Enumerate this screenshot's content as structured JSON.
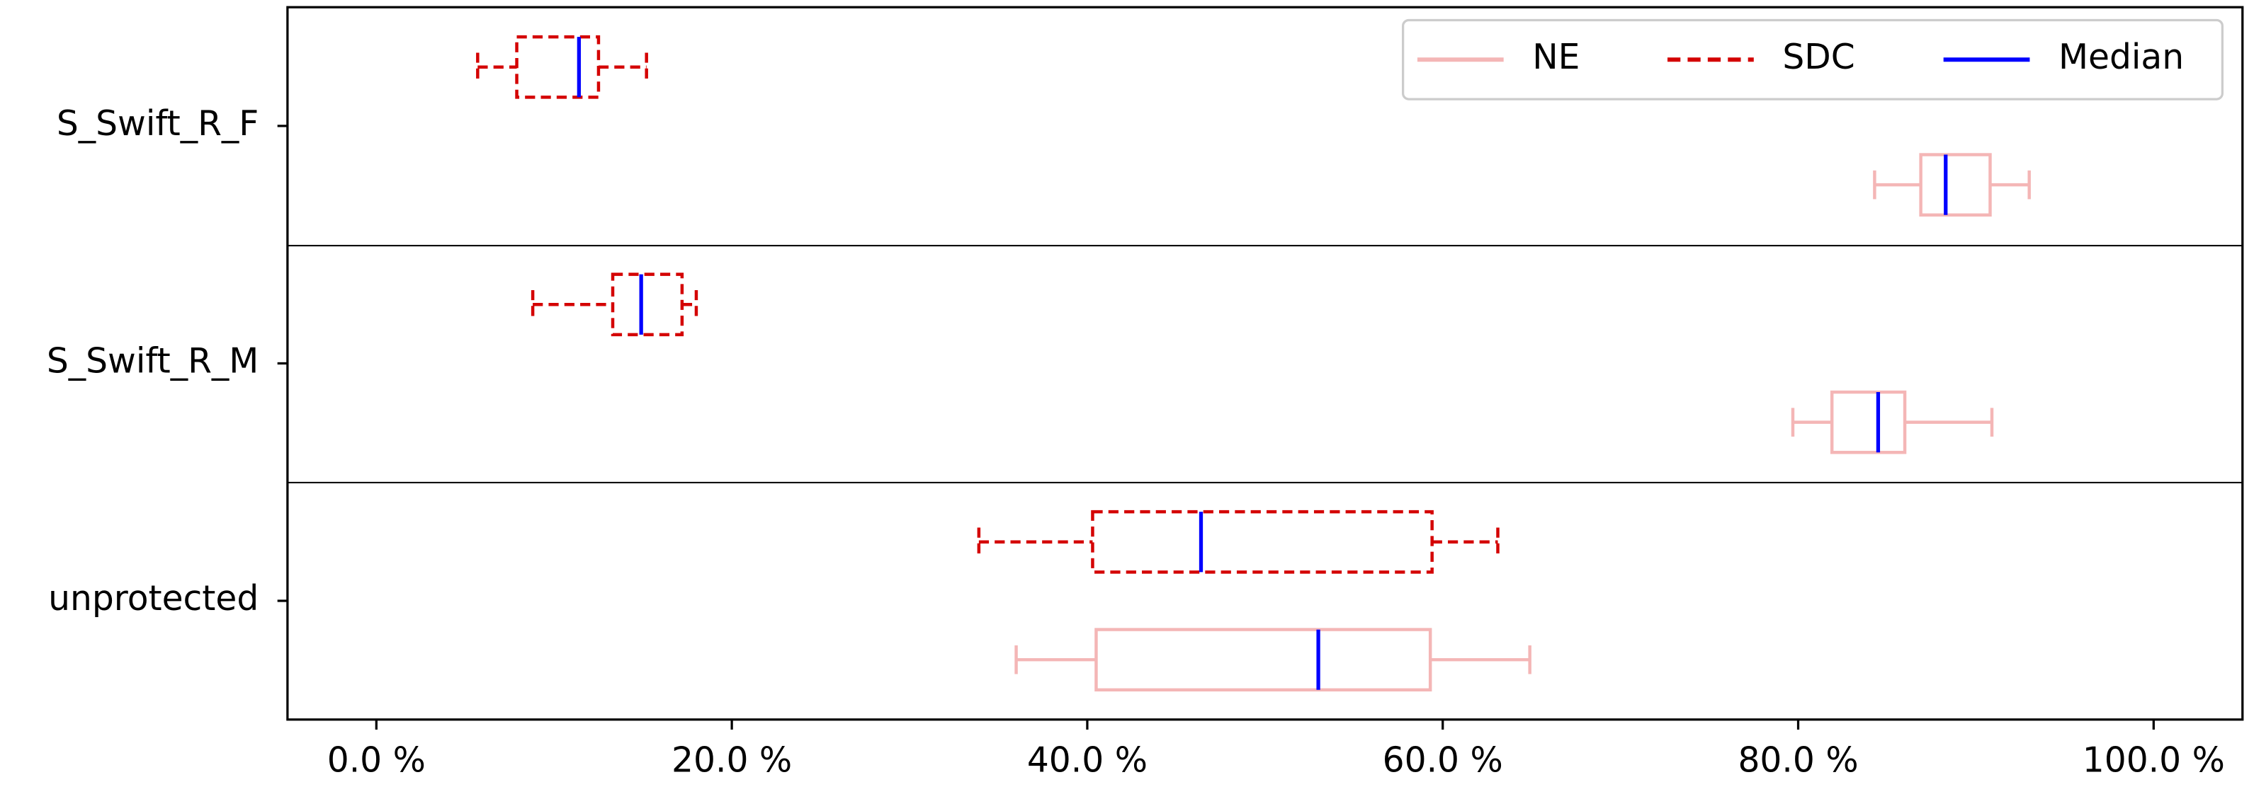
{
  "chart_data": {
    "type": "boxplot",
    "orientation": "horizontal",
    "categories": [
      "S_Swift_R_F",
      "S_Swift_R_M",
      "unprotected"
    ],
    "series": [
      {
        "name": "NE",
        "color": "#f4b6b6",
        "linestyle": "solid",
        "whislo": [
          84.3,
          79.7,
          36.0
        ],
        "q1": [
          86.9,
          81.9,
          40.5
        ],
        "med": [
          88.3,
          84.5,
          53.0
        ],
        "q3": [
          90.8,
          86.0,
          59.3
        ],
        "whishi": [
          93.0,
          90.9,
          64.9
        ]
      },
      {
        "name": "SDC",
        "color": "#d40000",
        "linestyle": "dashed",
        "whislo": [
          5.7,
          8.8,
          33.9
        ],
        "q1": [
          7.9,
          13.3,
          40.3
        ],
        "med": [
          11.4,
          14.9,
          46.4
        ],
        "q3": [
          12.5,
          17.2,
          59.4
        ],
        "whishi": [
          15.2,
          18.0,
          63.1
        ]
      }
    ],
    "median": {
      "name": "Median",
      "color": "#0000ff"
    },
    "xlim": [
      -5,
      105
    ],
    "xticks": [
      {
        "value": 0,
        "label": "0.0 %"
      },
      {
        "value": 20,
        "label": "20.0 %"
      },
      {
        "value": 40,
        "label": "40.0 %"
      },
      {
        "value": 60,
        "label": "60.0 %"
      },
      {
        "value": 80,
        "label": "80.0 %"
      },
      {
        "value": 100,
        "label": "100.0 %"
      }
    ],
    "legend": "upper right"
  }
}
